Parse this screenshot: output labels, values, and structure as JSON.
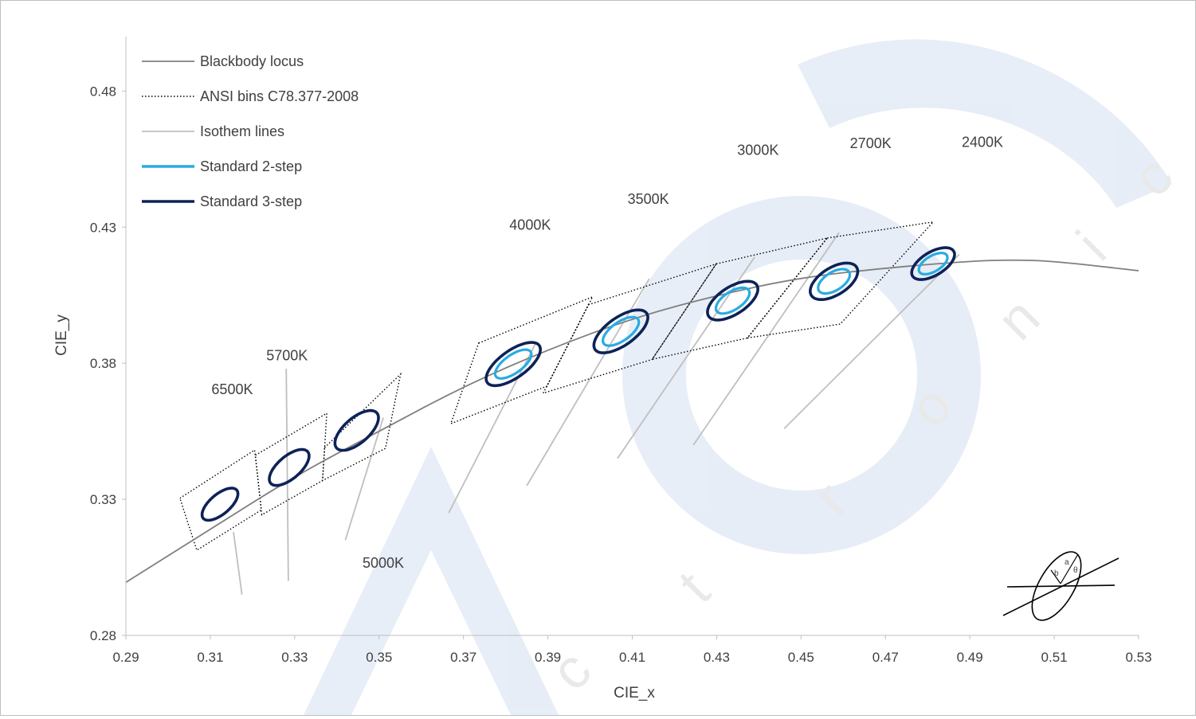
{
  "chart_data": {
    "type": "scatter",
    "xlabel": "CIE_x",
    "ylabel": "CIE_y",
    "xlim": [
      0.29,
      0.53
    ],
    "ylim": [
      0.28,
      0.5
    ],
    "x_ticks": [
      "0.29",
      "0.31",
      "0.33",
      "0.35",
      "0.37",
      "0.39",
      "0.41",
      "0.43",
      "0.45",
      "0.47",
      "0.49",
      "0.51",
      "0.53"
    ],
    "y_ticks": [
      "0.28",
      "0.33",
      "0.38",
      "0.43",
      "0.48"
    ],
    "x_tick_values": [
      0.29,
      0.31,
      0.33,
      0.35,
      0.37,
      0.39,
      0.41,
      0.43,
      0.45,
      0.47,
      0.49,
      0.51,
      0.53
    ],
    "y_tick_values": [
      0.28,
      0.33,
      0.38,
      0.43,
      0.48
    ],
    "legend_position": "top-left",
    "legend": [
      {
        "label": "Blackbody locus",
        "color": "#7f7f7f",
        "style": "solid"
      },
      {
        "label": "ANSI bins C78.377-2008",
        "color": "#000000",
        "style": "dotted"
      },
      {
        "label": "Isothem lines",
        "color": "#bfbfbf",
        "style": "solid"
      },
      {
        "label": "Standard 2-step",
        "color": "#29abe2",
        "style": "solid"
      },
      {
        "label": "Standard 3-step",
        "color": "#0d2257",
        "style": "solid"
      }
    ],
    "series": [
      {
        "name": "Blackbody locus",
        "points": [
          [
            0.29,
            0.2995
          ],
          [
            0.31,
            0.319
          ],
          [
            0.33,
            0.3385
          ],
          [
            0.35,
            0.355
          ],
          [
            0.37,
            0.3715
          ],
          [
            0.39,
            0.385
          ],
          [
            0.41,
            0.3965
          ],
          [
            0.43,
            0.405
          ],
          [
            0.45,
            0.4115
          ],
          [
            0.47,
            0.415
          ],
          [
            0.49,
            0.4175
          ],
          [
            0.5,
            0.418
          ],
          [
            0.51,
            0.4175
          ],
          [
            0.53,
            0.414
          ]
        ]
      },
      {
        "name": "ANSI bins C78.377-2008",
        "bins": [
          {
            "cct": "6500K",
            "corners": [
              [
                0.3028,
                0.3304
              ],
              [
                0.3205,
                0.3481
              ],
              [
                0.3221,
                0.3261
              ],
              [
                0.3068,
                0.3113
              ]
            ]
          },
          {
            "cct": "5700K",
            "corners": [
              [
                0.3207,
                0.3462
              ],
              [
                0.3376,
                0.3616
              ],
              [
                0.3366,
                0.3369
              ],
              [
                0.3222,
                0.3243
              ]
            ]
          },
          {
            "cct": "5000K",
            "corners": [
              [
                0.3371,
                0.349
              ],
              [
                0.3551,
                0.376
              ],
              [
                0.3515,
                0.3487
              ],
              [
                0.3366,
                0.3369
              ]
            ]
          },
          {
            "cct": "4000K",
            "corners": [
              [
                0.3736,
                0.3874
              ],
              [
                0.4006,
                0.4044
              ],
              [
                0.3898,
                0.3716
              ],
              [
                0.367,
                0.3578
              ]
            ]
          },
          {
            "cct": "3500K",
            "corners": [
              [
                0.3996,
                0.4015
              ],
              [
                0.4299,
                0.4165
              ],
              [
                0.4147,
                0.3814
              ],
              [
                0.3889,
                0.369
              ]
            ]
          },
          {
            "cct": "3000K",
            "corners": [
              [
                0.4299,
                0.4165
              ],
              [
                0.4562,
                0.426
              ],
              [
                0.4373,
                0.3893
              ],
              [
                0.4147,
                0.3814
              ]
            ]
          },
          {
            "cct": "2700K",
            "corners": [
              [
                0.4562,
                0.426
              ],
              [
                0.4813,
                0.4319
              ],
              [
                0.4593,
                0.3944
              ],
              [
                0.4373,
                0.3893
              ]
            ]
          }
        ]
      },
      {
        "name": "Isothem lines",
        "lines": [
          {
            "cct": "6500K",
            "from": [
              0.3175,
              0.295
            ],
            "to": [
              0.3155,
              0.318
            ]
          },
          {
            "cct": "5700K",
            "from": [
              0.3285,
              0.3
            ],
            "to": [
              0.328,
              0.378
            ]
          },
          {
            "cct": "5000K",
            "from": [
              0.342,
              0.315
            ],
            "to": [
              0.351,
              0.36
            ]
          },
          {
            "cct": "4000K",
            "from": [
              0.3665,
              0.325
            ],
            "to": [
              0.387,
              0.387
            ]
          },
          {
            "cct": "3500K",
            "from": [
              0.385,
              0.335
            ],
            "to": [
              0.414,
              0.411
            ]
          },
          {
            "cct": "3000K",
            "from": [
              0.4065,
              0.345
            ],
            "to": [
              0.439,
              0.419
            ]
          },
          {
            "cct": "2700K",
            "from": [
              0.4245,
              0.35
            ],
            "to": [
              0.459,
              0.428
            ]
          },
          {
            "cct": "2400K",
            "from": [
              0.446,
              0.356
            ],
            "to": [
              0.4875,
              0.42
            ]
          }
        ],
        "label_positions": [
          {
            "cct": "6500K",
            "x": 0.3152,
            "y": 0.3686
          },
          {
            "cct": "5700K",
            "x": 0.3282,
            "y": 0.3811
          },
          {
            "cct": "5000K",
            "x": 0.351,
            "y": 0.3048
          },
          {
            "cct": "4000K",
            "x": 0.3858,
            "y": 0.429
          },
          {
            "cct": "3500K",
            "x": 0.4138,
            "y": 0.4385
          },
          {
            "cct": "3000K",
            "x": 0.4398,
            "y": 0.4565
          },
          {
            "cct": "2700K",
            "x": 0.4665,
            "y": 0.459
          },
          {
            "cct": "2400K",
            "x": 0.493,
            "y": 0.4595
          }
        ]
      },
      {
        "name": "Standard 3-step",
        "ellipses": [
          {
            "cct": "6500K",
            "cx": 0.3123,
            "cy": 0.3282,
            "a": 0.00669,
            "b": 0.00285,
            "theta_deg": 58.57
          },
          {
            "cct": "5700K",
            "cx": 0.3287,
            "cy": 0.3417,
            "a": 0.00746,
            "b": 0.0032,
            "theta_deg": 59.09
          },
          {
            "cct": "5000K",
            "cx": 0.3447,
            "cy": 0.3553,
            "a": 0.00822,
            "b": 0.00354,
            "theta_deg": 59.62
          },
          {
            "cct": "4000K",
            "cx": 0.3818,
            "cy": 0.3797,
            "a": 0.00939,
            "b": 0.00402,
            "theta_deg": 53.72
          },
          {
            "cct": "3500K",
            "cx": 0.4073,
            "cy": 0.3917,
            "a": 0.00927,
            "b": 0.00414,
            "theta_deg": 54.0
          },
          {
            "cct": "3000K",
            "cx": 0.4338,
            "cy": 0.403,
            "a": 0.00834,
            "b": 0.00408,
            "theta_deg": 53.17
          },
          {
            "cct": "2700K",
            "cx": 0.4578,
            "cy": 0.4101,
            "a": 0.00774,
            "b": 0.00411,
            "theta_deg": 54.0
          },
          {
            "cct": "2400K",
            "cx": 0.4813,
            "cy": 0.4166,
            "a": 0.0069,
            "b": 0.00354,
            "theta_deg": 52.0
          }
        ]
      },
      {
        "name": "Standard 2-step",
        "ellipses": [
          {
            "cct": "4000K",
            "cx": 0.3818,
            "cy": 0.3797,
            "a": 0.00626,
            "b": 0.00268,
            "theta_deg": 53.72
          },
          {
            "cct": "3500K",
            "cx": 0.4073,
            "cy": 0.3917,
            "a": 0.00618,
            "b": 0.00276,
            "theta_deg": 54.0
          },
          {
            "cct": "3000K",
            "cx": 0.4338,
            "cy": 0.403,
            "a": 0.00556,
            "b": 0.00272,
            "theta_deg": 53.17
          },
          {
            "cct": "2700K",
            "cx": 0.4578,
            "cy": 0.4101,
            "a": 0.00516,
            "b": 0.00274,
            "theta_deg": 54.0
          },
          {
            "cct": "2400K",
            "cx": 0.4813,
            "cy": 0.4166,
            "a": 0.0046,
            "b": 0.00236,
            "theta_deg": 52.0
          }
        ]
      }
    ],
    "inset_symbols": [
      "a",
      "b",
      "θ"
    ]
  }
}
